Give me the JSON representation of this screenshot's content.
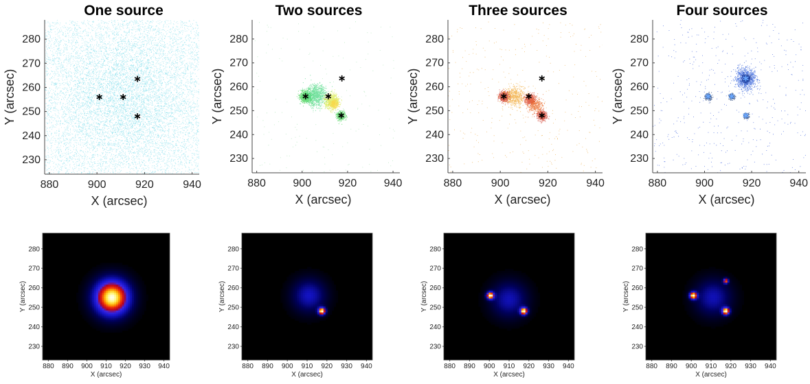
{
  "panel_titles": [
    "One source",
    "Two sources",
    "Three sources",
    "Four sources"
  ],
  "chart_data": [
    {
      "type": "scatter",
      "title": "One source",
      "xlabel": "X (arcsec)",
      "ylabel": "Y (arcsec)",
      "xlim": [
        878,
        943
      ],
      "ylim": [
        224,
        288
      ],
      "xticks": [
        880,
        900,
        920,
        940
      ],
      "yticks": [
        230,
        240,
        250,
        260,
        270,
        280
      ],
      "color": "#5fd6e8",
      "dot_alpha": 0.55,
      "background_dots": 6500,
      "clusters": [
        {
          "x": 912,
          "y": 256,
          "sigma": 14,
          "n": 3500
        }
      ],
      "markers": [
        {
          "x": 901,
          "y": 256
        },
        {
          "x": 911,
          "y": 256
        },
        {
          "x": 917,
          "y": 263.5
        },
        {
          "x": 917,
          "y": 248
        }
      ],
      "marker_color": "#000000"
    },
    {
      "type": "scatter",
      "title": "Two sources",
      "xlabel": "X (arcsec)",
      "ylabel": "Y (arcsec)",
      "xlim": [
        878,
        943
      ],
      "ylim": [
        224,
        288
      ],
      "xticks": [
        880,
        900,
        920,
        940
      ],
      "yticks": [
        230,
        240,
        250,
        260,
        270,
        280
      ],
      "color": "#9be0a8",
      "dot_alpha": 0.7,
      "background_dots": 160,
      "clusters": [
        {
          "x": 901.5,
          "y": 256,
          "sigma": 1.2,
          "n": 700,
          "color": "#2ecc40"
        },
        {
          "x": 906,
          "y": 256.5,
          "sigma": 2.2,
          "n": 900,
          "color": "#3fd67a"
        },
        {
          "x": 913,
          "y": 254,
          "sigma": 1.5,
          "n": 800,
          "color": "#d6e83a"
        },
        {
          "x": 914,
          "y": 253,
          "sigma": 0.8,
          "n": 300,
          "color": "#ffd23a"
        },
        {
          "x": 917,
          "y": 248,
          "sigma": 0.9,
          "n": 400,
          "color": "#2ecc40"
        }
      ],
      "markers": [
        {
          "x": 901.5,
          "y": 256
        },
        {
          "x": 911.5,
          "y": 256
        },
        {
          "x": 917.5,
          "y": 263.5
        },
        {
          "x": 917.2,
          "y": 248
        }
      ],
      "marker_color": "#000000"
    },
    {
      "type": "scatter",
      "title": "Three sources",
      "xlabel": "X (arcsec)",
      "ylabel": "Y (arcsec)",
      "xlim": [
        878,
        943
      ],
      "ylim": [
        224,
        288
      ],
      "xticks": [
        880,
        900,
        920,
        940
      ],
      "yticks": [
        230,
        240,
        250,
        260,
        270,
        280
      ],
      "color": "#e8a030",
      "dot_alpha": 0.7,
      "background_dots": 320,
      "clusters": [
        {
          "x": 901.5,
          "y": 256,
          "sigma": 1.0,
          "n": 700,
          "color": "#c81e0a"
        },
        {
          "x": 906,
          "y": 256,
          "sigma": 2.0,
          "n": 500,
          "color": "#f0a020"
        },
        {
          "x": 912.5,
          "y": 255,
          "sigma": 1.0,
          "n": 600,
          "color": "#d42a10"
        },
        {
          "x": 914.5,
          "y": 252,
          "sigma": 1.6,
          "n": 400,
          "color": "#e86018"
        },
        {
          "x": 917.5,
          "y": 248,
          "sigma": 0.9,
          "n": 600,
          "color": "#c81e0a"
        }
      ],
      "markers": [
        {
          "x": 901.5,
          "y": 256
        },
        {
          "x": 912,
          "y": 256
        },
        {
          "x": 917.5,
          "y": 263.5
        },
        {
          "x": 917.5,
          "y": 248
        }
      ],
      "marker_color": "#000000"
    },
    {
      "type": "scatter",
      "title": "Four sources",
      "xlabel": "X (arcsec)",
      "ylabel": "Y (arcsec)",
      "xlim": [
        878,
        943
      ],
      "ylim": [
        224,
        288
      ],
      "xticks": [
        880,
        900,
        920,
        940
      ],
      "yticks": [
        230,
        240,
        250,
        260,
        270,
        280
      ],
      "color": "#2a50d8",
      "dot_alpha": 0.75,
      "background_dots": 420,
      "clusters": [
        {
          "x": 917.5,
          "y": 263.5,
          "sigma": 2.2,
          "n": 900,
          "color": "#2a5ad8"
        },
        {
          "x": 917.5,
          "y": 263.5,
          "sigma": 0.8,
          "n": 400,
          "color": "#0a2a8a"
        },
        {
          "x": 901.5,
          "y": 256,
          "sigma": 0.7,
          "n": 250,
          "color": "#10306e"
        },
        {
          "x": 911.5,
          "y": 256,
          "sigma": 0.6,
          "n": 200,
          "color": "#10306e"
        },
        {
          "x": 917.5,
          "y": 248,
          "sigma": 0.6,
          "n": 200,
          "color": "#10306e"
        }
      ],
      "markers": [
        {
          "x": 901.5,
          "y": 256
        },
        {
          "x": 911.5,
          "y": 256
        },
        {
          "x": 917.5,
          "y": 263.5
        },
        {
          "x": 917.5,
          "y": 248
        }
      ],
      "marker_color": "#6aa8ff"
    },
    {
      "type": "heatmap",
      "xlabel": "X (arcsec)",
      "ylabel": "Y (arcsec)",
      "xlim": [
        877,
        943
      ],
      "ylim": [
        223,
        288
      ],
      "xticks": [
        880,
        890,
        900,
        910,
        920,
        930,
        940
      ],
      "yticks": [
        230,
        240,
        250,
        260,
        270,
        280
      ],
      "colormap": "hot-blue",
      "sources": [
        {
          "x": 913,
          "y": 255,
          "sigma": 6.5,
          "amp": 1.0
        }
      ]
    },
    {
      "type": "heatmap",
      "xlabel": "X (arcsec)",
      "ylabel": "Y (arcsec)",
      "xlim": [
        877,
        943
      ],
      "ylim": [
        223,
        288
      ],
      "xticks": [
        880,
        890,
        900,
        910,
        920,
        930,
        940
      ],
      "yticks": [
        230,
        240,
        250,
        260,
        270,
        280
      ],
      "colormap": "hot-blue",
      "sources": [
        {
          "x": 911,
          "y": 256,
          "sigma": 6.0,
          "amp": 0.34
        },
        {
          "x": 917.5,
          "y": 248,
          "sigma": 1.3,
          "amp": 1.0
        }
      ]
    },
    {
      "type": "heatmap",
      "xlabel": "X (arcsec)",
      "ylabel": "Y (arcsec)",
      "xlim": [
        877,
        943
      ],
      "ylim": [
        223,
        288
      ],
      "xticks": [
        880,
        890,
        900,
        910,
        920,
        930,
        940
      ],
      "yticks": [
        230,
        240,
        250,
        260,
        270,
        280
      ],
      "colormap": "hot-blue",
      "sources": [
        {
          "x": 910,
          "y": 254,
          "sigma": 6.5,
          "amp": 0.32
        },
        {
          "x": 900.5,
          "y": 256,
          "sigma": 1.3,
          "amp": 1.0
        },
        {
          "x": 917.5,
          "y": 248,
          "sigma": 1.3,
          "amp": 1.0
        }
      ]
    },
    {
      "type": "heatmap",
      "xlabel": "X (arcsec)",
      "ylabel": "Y (arcsec)",
      "xlim": [
        877,
        943
      ],
      "ylim": [
        223,
        288
      ],
      "xticks": [
        880,
        890,
        900,
        910,
        920,
        930,
        940
      ],
      "yticks": [
        230,
        240,
        250,
        260,
        270,
        280
      ],
      "colormap": "hot-blue",
      "sources": [
        {
          "x": 911,
          "y": 255,
          "sigma": 6.5,
          "amp": 0.32
        },
        {
          "x": 901,
          "y": 256,
          "sigma": 1.3,
          "amp": 1.0
        },
        {
          "x": 917.5,
          "y": 248,
          "sigma": 1.3,
          "amp": 1.0
        },
        {
          "x": 917.5,
          "y": 263.5,
          "sigma": 0.9,
          "amp": 0.75
        }
      ]
    }
  ]
}
